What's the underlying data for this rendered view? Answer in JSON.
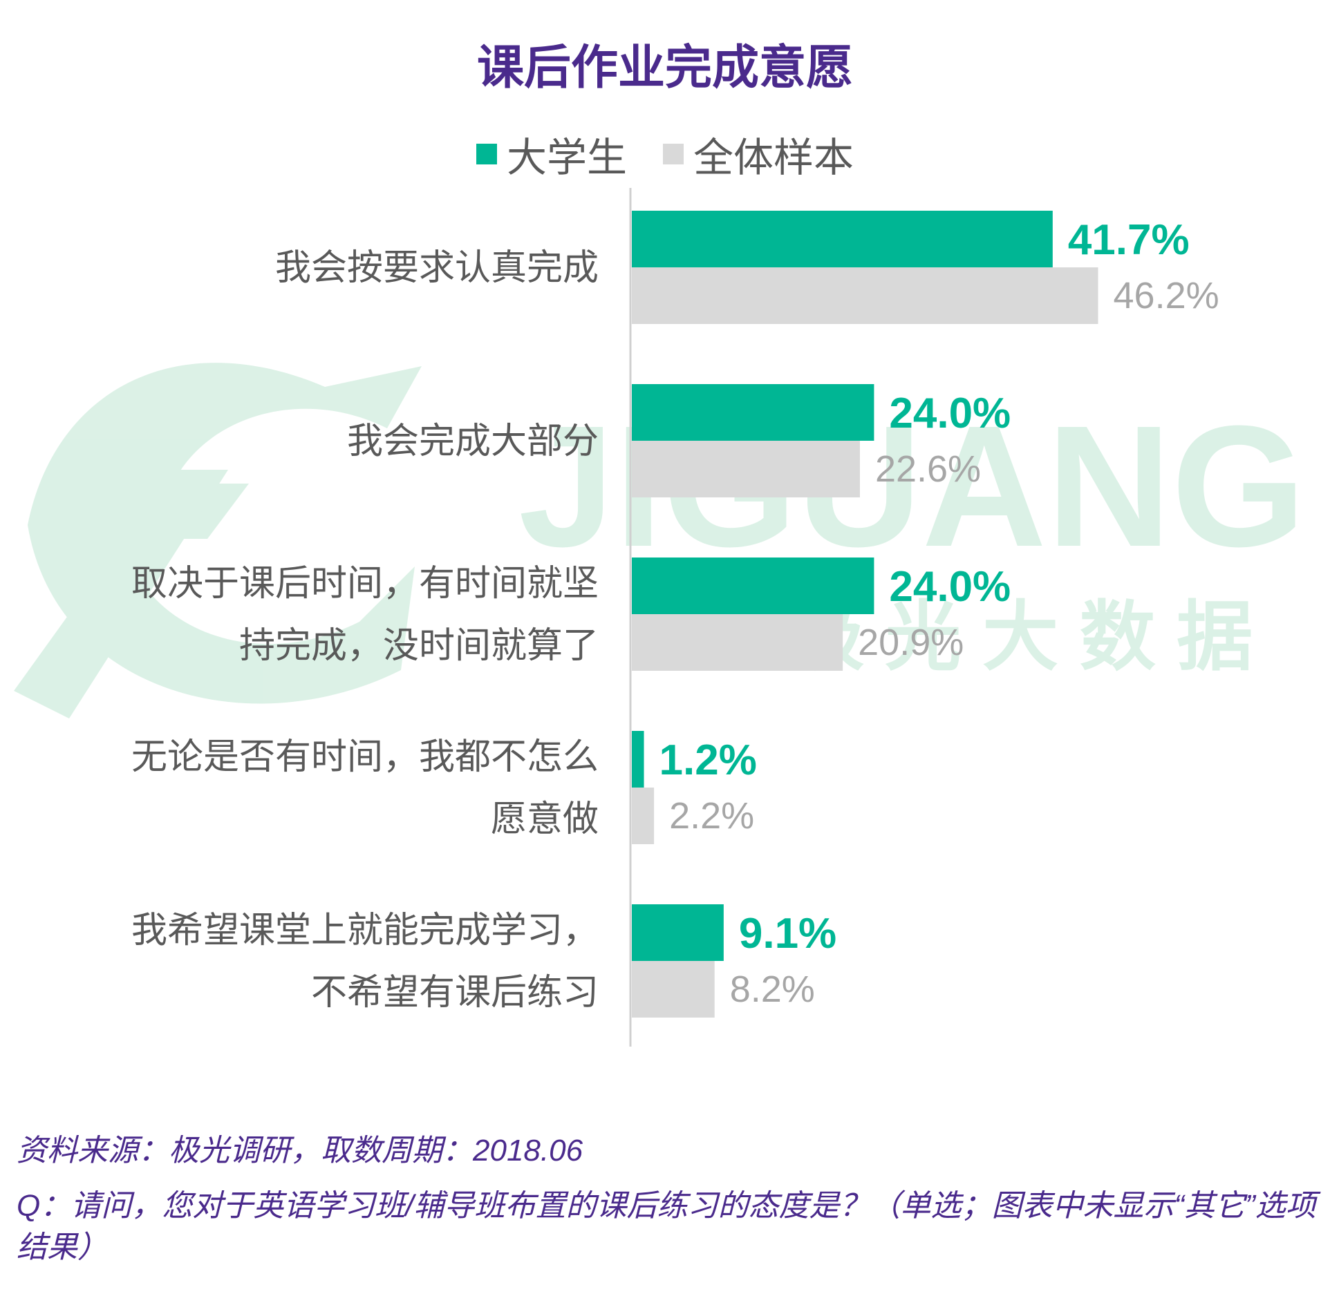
{
  "chart_data": {
    "type": "bar",
    "orientation": "horizontal",
    "title": "课后作业完成意愿",
    "categories": [
      [
        "我会按要求认真完成"
      ],
      [
        "我会完成大部分"
      ],
      [
        "取决于课后时间，有时间就坚",
        "持完成，没时间就算了"
      ],
      [
        "无论是否有时间，我都不怎么",
        "愿意做"
      ],
      [
        "我希望课堂上就能完成学习，",
        "不希望有课后练习"
      ]
    ],
    "series": [
      {
        "name": "大学生",
        "values": [
          41.7,
          24.0,
          24.0,
          1.2,
          9.1
        ],
        "labels": [
          "41.7%",
          "24.0%",
          "24.0%",
          "1.2%",
          "9.1%"
        ],
        "color": "#00b694",
        "label_color": "#00b694"
      },
      {
        "name": "全体样本",
        "values": [
          46.2,
          22.6,
          20.9,
          2.2,
          8.2
        ],
        "labels": [
          "46.2%",
          "22.6%",
          "20.9%",
          "2.2%",
          "8.2%"
        ],
        "color": "#d9d9d9",
        "label_color": "#a6a6a6"
      }
    ],
    "xlim": [
      0,
      60
    ],
    "grid": false,
    "legend_position": "top"
  },
  "watermark": {
    "text": "JIGUANG",
    "subtext": "极 光 大 数 据"
  },
  "footer": {
    "source": "资料来源：极光调研，取数周期：2018.06",
    "question": "Q：请问，您对于英语学习班/辅导班布置的课后练习的态度是？（单选；图表中未显示“其它”选项结果）"
  }
}
